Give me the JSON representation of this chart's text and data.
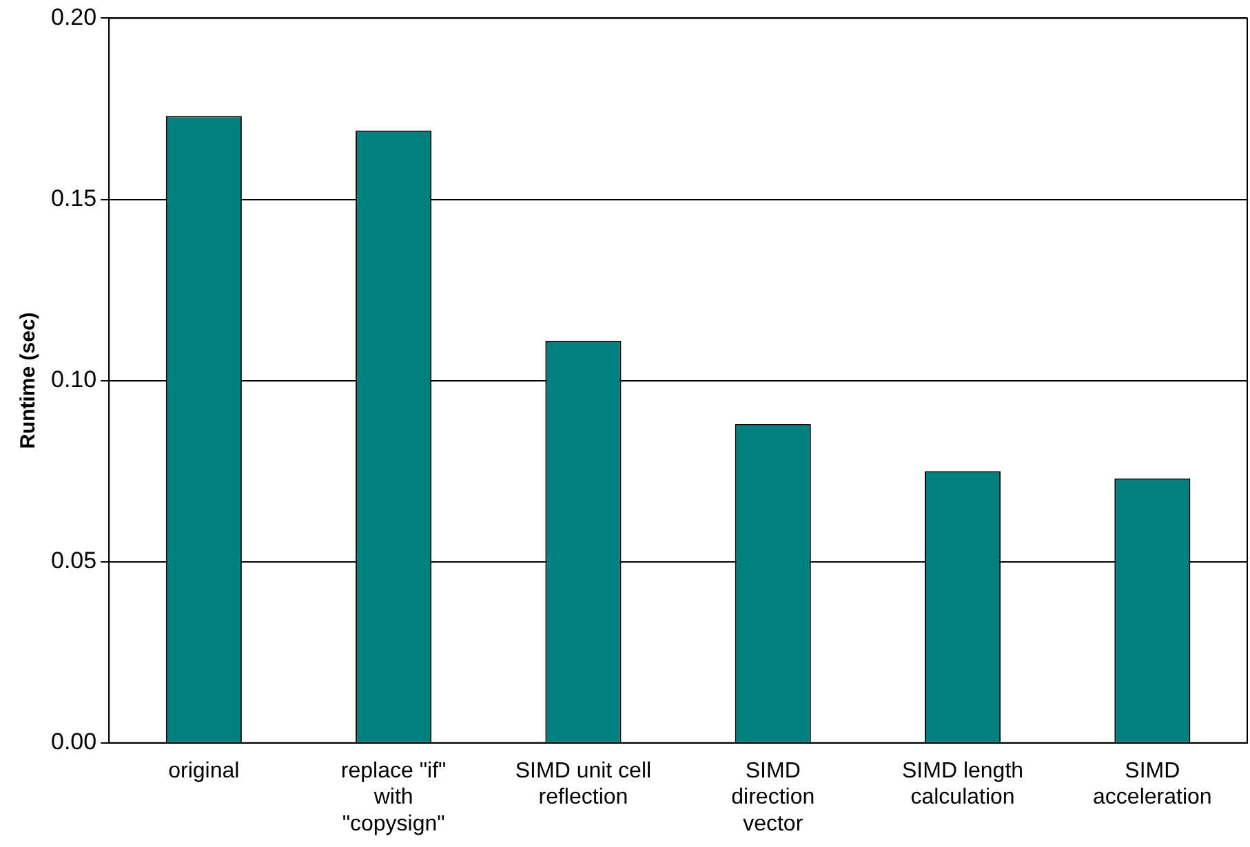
{
  "chart_data": {
    "type": "bar",
    "ylabel": "Runtime (sec)",
    "categories": [
      "original",
      "replace \"if\" with \"copysign\"",
      "SIMD unit cell reflection",
      "SIMD direction vector",
      "SIMD length calculation",
      "SIMD acceleration"
    ],
    "values": [
      0.173,
      0.169,
      0.111,
      0.088,
      0.075,
      0.073
    ],
    "color": "#008080",
    "ylim": [
      0,
      0.2
    ],
    "yticks": [
      {
        "value": 0,
        "label": "0.00"
      },
      {
        "value": 0.05,
        "label": "0.05"
      },
      {
        "value": 0.1,
        "label": "0.10"
      },
      {
        "value": 0.15,
        "label": "0.15"
      },
      {
        "value": 0.2,
        "label": "0.20"
      }
    ],
    "grid": "y",
    "legend": false
  }
}
